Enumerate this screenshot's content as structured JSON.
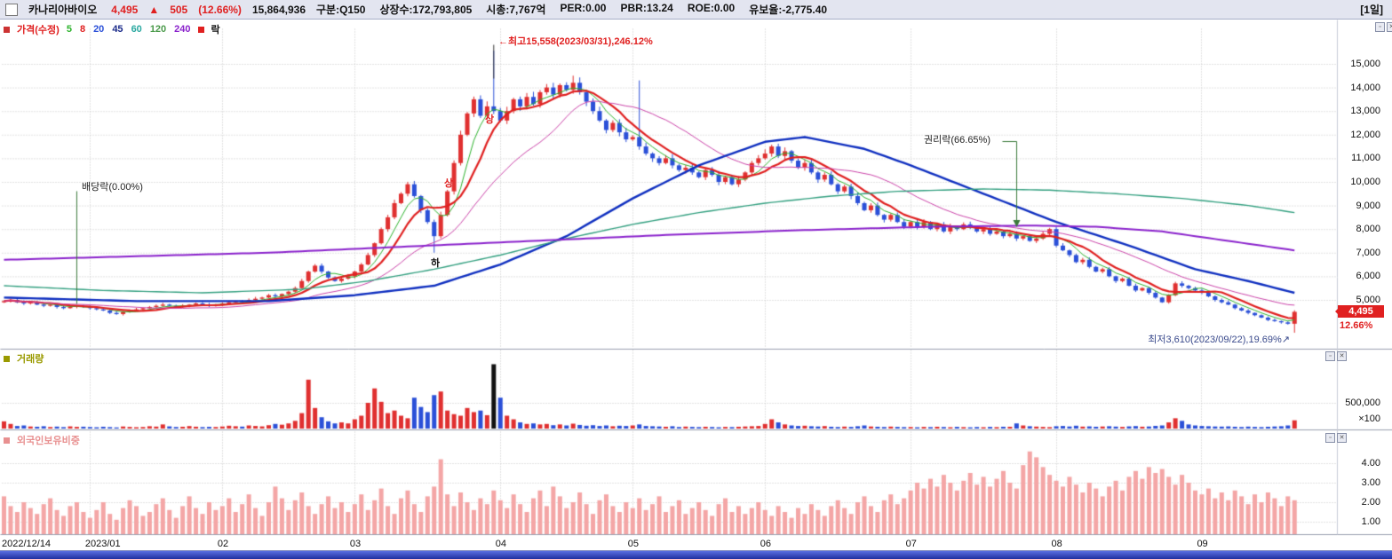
{
  "window": {
    "period_label": "[1일]"
  },
  "header": {
    "stock_name": "카나리아바이오",
    "price": "4,495",
    "change_arrow": "▲",
    "change": "505",
    "change_pct": "(12.66%)",
    "volume": "15,864,936",
    "stats": [
      "구분:Q150",
      "상장수:172,793,805",
      "시총:7,767억",
      "PER:0.00",
      "PBR:13.24",
      "ROE:0.00",
      "유보율:-2,775.40"
    ]
  },
  "price_pane": {
    "legend_title": "가격(수정)",
    "ma_tokens": [
      {
        "t": "5",
        "c": "#2db32d"
      },
      {
        "t": "8",
        "c": "#e02020"
      },
      {
        "t": "20",
        "c": "#2b50d8"
      },
      {
        "t": "45",
        "c": "#1a2a8a"
      },
      {
        "t": "60",
        "c": "#2aa8a0"
      },
      {
        "t": "120",
        "c": "#4a9a4a"
      },
      {
        "t": "240",
        "c": "#8a22cc"
      }
    ],
    "lock_label": "락",
    "axis_labels": [
      "15,000",
      "14,000",
      "13,000",
      "12,000",
      "11,000",
      "10,000",
      "9,000",
      "8,000",
      "7,000",
      "6,000",
      "5,000"
    ],
    "current_price": "4,495",
    "current_pct": "12.66%",
    "annotations": {
      "high": {
        "arrow": "←",
        "text": "최고15,558(2023/03/31),246.12%"
      },
      "dividend": {
        "text": "배당락(0.00%)"
      },
      "rights": {
        "text": "권리락(66.65%)"
      },
      "low": {
        "text": "최저3,610(2023/09/22),19.69%",
        "arrow": "↗"
      },
      "limit_up": "상",
      "limit_down": "하"
    }
  },
  "volume_pane": {
    "label": "거래량",
    "axis_label": "500,000",
    "unit": "×100"
  },
  "foreign_pane": {
    "label": "외국인보유비중",
    "axis_labels": [
      "4.00",
      "3.00",
      "2.00",
      "1.00"
    ]
  },
  "x_axis": {
    "ticks": [
      {
        "i": 0,
        "label": "2022/12/14"
      },
      {
        "i": 13,
        "label": "2023/01"
      },
      {
        "i": 33,
        "label": "02"
      },
      {
        "i": 53,
        "label": "03"
      },
      {
        "i": 75,
        "label": "04"
      },
      {
        "i": 95,
        "label": "05"
      },
      {
        "i": 115,
        "label": "06"
      },
      {
        "i": 137,
        "label": "07"
      },
      {
        "i": 159,
        "label": "08"
      },
      {
        "i": 181,
        "label": "09"
      }
    ]
  },
  "chart_data": {
    "type": "candlestick",
    "title": "카나리아바이오 일봉 (가격/거래량/외국인보유비중)",
    "price_axis": [
      15000,
      14000,
      13000,
      12000,
      11000,
      10000,
      9000,
      8000,
      7000,
      6000,
      5000
    ],
    "first_open": 4900,
    "closes": [
      4950,
      5000,
      4900,
      4850,
      4900,
      4800,
      4750,
      4800,
      4700,
      4650,
      4700,
      4750,
      4700,
      4650,
      4600,
      4550,
      4450,
      4400,
      4500,
      4550,
      4600,
      4650,
      4700,
      4750,
      4800,
      4750,
      4700,
      4750,
      4800,
      4850,
      4800,
      4750,
      4800,
      4850,
      4900,
      4950,
      4900,
      5000,
      5050,
      5100,
      5200,
      5150,
      5250,
      5350,
      5500,
      5800,
      6200,
      6450,
      6200,
      5950,
      5800,
      5900,
      6000,
      6200,
      6500,
      6900,
      7400,
      8000,
      8500,
      9100,
      9500,
      9900,
      9400,
      8800,
      8300,
      7700,
      8600,
      9600,
      10800,
      12000,
      12900,
      13500,
      12800,
      13200,
      13000,
      12600,
      13000,
      13500,
      13200,
      13600,
      13300,
      13800,
      14000,
      13700,
      14100,
      13900,
      14200,
      13800,
      13400,
      13000,
      12600,
      12200,
      12500,
      12100,
      11800,
      11900,
      11500,
      11200,
      11000,
      10800,
      11000,
      10700,
      10500,
      10600,
      10400,
      10200,
      10500,
      10300,
      10000,
      10200,
      9900,
      10100,
      10400,
      10800,
      11000,
      11200,
      11500,
      11100,
      11300,
      10900,
      10600,
      10800,
      10400,
      10100,
      10300,
      9900,
      9600,
      9800,
      9400,
      9100,
      8800,
      9000,
      8600,
      8400,
      8600,
      8300,
      8100,
      8300,
      8100,
      8300,
      8000,
      8200,
      7900,
      8100,
      8000,
      8200,
      8100,
      7900,
      8000,
      7800,
      7900,
      7700,
      7800,
      7600,
      7700,
      7500,
      7600,
      7800,
      8000,
      7300,
      7100,
      6900,
      6600,
      6700,
      6400,
      6200,
      6300,
      6000,
      5800,
      5900,
      5600,
      5400,
      5500,
      5300,
      5100,
      4900,
      5200,
      5700,
      5600,
      5500,
      5400,
      5300,
      5150,
      5000,
      4900,
      4800,
      4650,
      4550,
      4450,
      4350,
      4250,
      4150,
      4100,
      4050,
      3990,
      4495
    ],
    "wick_overrides": {
      "65": {
        "low": 7000
      },
      "74": {
        "high": 15558
      },
      "86": {
        "high": 14500
      },
      "96": {
        "high": 14300
      },
      "195": {
        "low": 3610,
        "high": 4560
      }
    },
    "volumes": [
      140000,
      90000,
      50000,
      60000,
      40000,
      35000,
      45000,
      30000,
      38000,
      28000,
      42000,
      33000,
      36000,
      30000,
      25000,
      35000,
      28000,
      22000,
      40000,
      32000,
      26000,
      30000,
      45000,
      38000,
      80000,
      42000,
      30000,
      35000,
      48000,
      36000,
      28000,
      33000,
      30000,
      40000,
      55000,
      45000,
      38000,
      60000,
      50000,
      42000,
      65000,
      90000,
      75000,
      100000,
      150000,
      300000,
      950000,
      400000,
      220000,
      140000,
      100000,
      120000,
      100000,
      180000,
      250000,
      500000,
      780000,
      520000,
      300000,
      350000,
      250000,
      200000,
      600000,
      420000,
      320000,
      650000,
      720000,
      350000,
      280000,
      250000,
      400000,
      320000,
      350000,
      260000,
      1250000,
      600000,
      250000,
      180000,
      120000,
      90000,
      100000,
      80000,
      90000,
      65000,
      80000,
      60000,
      95000,
      70000,
      55000,
      65000,
      50000,
      60000,
      45000,
      55000,
      50000,
      60000,
      80000,
      50000,
      45000,
      40000,
      35000,
      45000,
      30000,
      38000,
      32000,
      28000,
      35000,
      30000,
      25000,
      32000,
      28000,
      35000,
      40000,
      45000,
      50000,
      90000,
      180000,
      120000,
      80000,
      60000,
      50000,
      55000,
      45000,
      40000,
      48000,
      35000,
      30000,
      38000,
      32000,
      45000,
      60000,
      40000,
      35000,
      30000,
      38000,
      32000,
      28000,
      30000,
      25000,
      32000,
      28000,
      35000,
      30000,
      26000,
      33000,
      28000,
      24000,
      30000,
      26000,
      32000,
      28000,
      35000,
      35000,
      100000,
      60000,
      45000,
      38000,
      32000,
      28000,
      45000,
      50000,
      40000,
      55000,
      38000,
      42000,
      35000,
      40000,
      45000,
      38000,
      32000,
      42000,
      48000,
      36000,
      40000,
      52000,
      60000,
      120000,
      200000,
      150000,
      80000,
      60000,
      50000,
      45000,
      40000,
      38000,
      42000,
      35000,
      30000,
      38000,
      32000,
      28000,
      35000,
      40000,
      45000,
      60000,
      160000
    ],
    "volume_black_index": 74,
    "foreign_pct": [
      2.3,
      1.8,
      1.5,
      2.0,
      1.7,
      1.4,
      1.9,
      2.2,
      1.6,
      1.3,
      1.8,
      2.0,
      1.5,
      1.2,
      1.6,
      2.0,
      1.4,
      1.1,
      1.7,
      2.1,
      1.8,
      1.3,
      1.5,
      1.9,
      2.2,
      1.6,
      1.2,
      1.8,
      2.3,
      1.7,
      1.4,
      2.0,
      1.6,
      1.8,
      2.2,
      1.5,
      1.9,
      2.4,
      1.7,
      1.3,
      2.0,
      2.8,
      2.2,
      1.6,
      2.1,
      2.5,
      1.8,
      1.4,
      1.9,
      2.3,
      1.7,
      2.0,
      1.5,
      1.9,
      2.4,
      1.6,
      2.1,
      2.7,
      1.8,
      1.4,
      2.2,
      2.6,
      1.9,
      1.5,
      2.3,
      2.8,
      4.2,
      2.4,
      1.8,
      2.5,
      2.0,
      1.6,
      2.2,
      1.9,
      2.6,
      2.1,
      1.7,
      2.4,
      1.9,
      1.5,
      2.2,
      2.6,
      1.8,
      2.8,
      2.3,
      1.7,
      2.0,
      2.5,
      1.9,
      1.4,
      2.1,
      2.4,
      1.8,
      1.5,
      2.0,
      1.7,
      2.2,
      1.6,
      1.9,
      2.3,
      1.5,
      1.8,
      2.1,
      1.4,
      1.7,
      2.0,
      1.6,
      1.3,
      1.9,
      2.2,
      1.5,
      1.8,
      1.4,
      1.7,
      2.0,
      1.6,
      1.3,
      1.8,
      1.5,
      1.2,
      1.7,
      1.4,
      1.9,
      1.6,
      1.3,
      1.8,
      2.1,
      1.7,
      1.4,
      2.0,
      2.3,
      1.8,
      1.5,
      2.1,
      2.4,
      1.9,
      2.2,
      2.6,
      3.0,
      2.7,
      3.2,
      2.8,
      3.4,
      3.0,
      2.6,
      3.1,
      3.5,
      2.9,
      3.3,
      2.8,
      3.2,
      3.6,
      3.0,
      2.7,
      3.9,
      4.6,
      4.3,
      3.8,
      3.4,
      3.1,
      2.8,
      3.3,
      2.9,
      2.5,
      3.0,
      2.7,
      2.3,
      2.8,
      3.1,
      2.6,
      3.3,
      3.6,
      3.2,
      3.8,
      3.5,
      3.7,
      3.3,
      2.9,
      3.4,
      3.0,
      2.6,
      2.4,
      2.7,
      2.2,
      2.5,
      2.1,
      2.6,
      2.3,
      1.9,
      2.4,
      2.0,
      2.5,
      2.2,
      1.8,
      2.3,
      2.1
    ],
    "ma_computed": [
      {
        "n": 5,
        "color": "#2db32d",
        "w": 1
      },
      {
        "n": 8,
        "color": "#e02020",
        "w": 2.2
      },
      {
        "n": 20,
        "color": "#cc44aa",
        "w": 1
      }
    ],
    "ma_overlays": [
      {
        "name": "60",
        "color": "#1030c0",
        "w": 2.4,
        "pts": [
          [
            0,
            5100
          ],
          [
            20,
            4950
          ],
          [
            40,
            4950
          ],
          [
            53,
            5200
          ],
          [
            65,
            5600
          ],
          [
            75,
            6500
          ],
          [
            85,
            7700
          ],
          [
            95,
            9300
          ],
          [
            105,
            10700
          ],
          [
            115,
            11700
          ],
          [
            121,
            11900
          ],
          [
            130,
            11400
          ],
          [
            137,
            10700
          ],
          [
            148,
            9500
          ],
          [
            159,
            8300
          ],
          [
            170,
            7300
          ],
          [
            180,
            6300
          ],
          [
            188,
            5800
          ],
          [
            195,
            5300
          ]
        ]
      },
      {
        "name": "120",
        "color": "#33a080",
        "w": 1.4,
        "pts": [
          [
            0,
            5600
          ],
          [
            15,
            5400
          ],
          [
            30,
            5300
          ],
          [
            45,
            5450
          ],
          [
            55,
            5800
          ],
          [
            65,
            6300
          ],
          [
            75,
            6900
          ],
          [
            85,
            7600
          ],
          [
            95,
            8200
          ],
          [
            105,
            8700
          ],
          [
            115,
            9100
          ],
          [
            125,
            9400
          ],
          [
            135,
            9600
          ],
          [
            148,
            9700
          ],
          [
            158,
            9650
          ],
          [
            168,
            9500
          ],
          [
            178,
            9300
          ],
          [
            188,
            9000
          ],
          [
            195,
            8700
          ]
        ]
      },
      {
        "name": "240",
        "color": "#8a22cc",
        "w": 2,
        "pts": [
          [
            0,
            6700
          ],
          [
            20,
            6850
          ],
          [
            40,
            7000
          ],
          [
            60,
            7250
          ],
          [
            80,
            7500
          ],
          [
            100,
            7750
          ],
          [
            120,
            7950
          ],
          [
            140,
            8100
          ],
          [
            155,
            8150
          ],
          [
            165,
            8100
          ],
          [
            175,
            7900
          ],
          [
            185,
            7500
          ],
          [
            195,
            7100
          ]
        ]
      }
    ],
    "annotation_indices": {
      "high": 74,
      "dividend": 11,
      "rights": 153,
      "low": 195,
      "limit_up": [
        67,
        73
      ],
      "limit_down": [
        65
      ]
    },
    "colors": {
      "up": "#e03030",
      "down": "#2b50d8",
      "foreign_bar": "#f4a6a6",
      "grid": "#c8c8c8",
      "black": "#111111"
    }
  }
}
